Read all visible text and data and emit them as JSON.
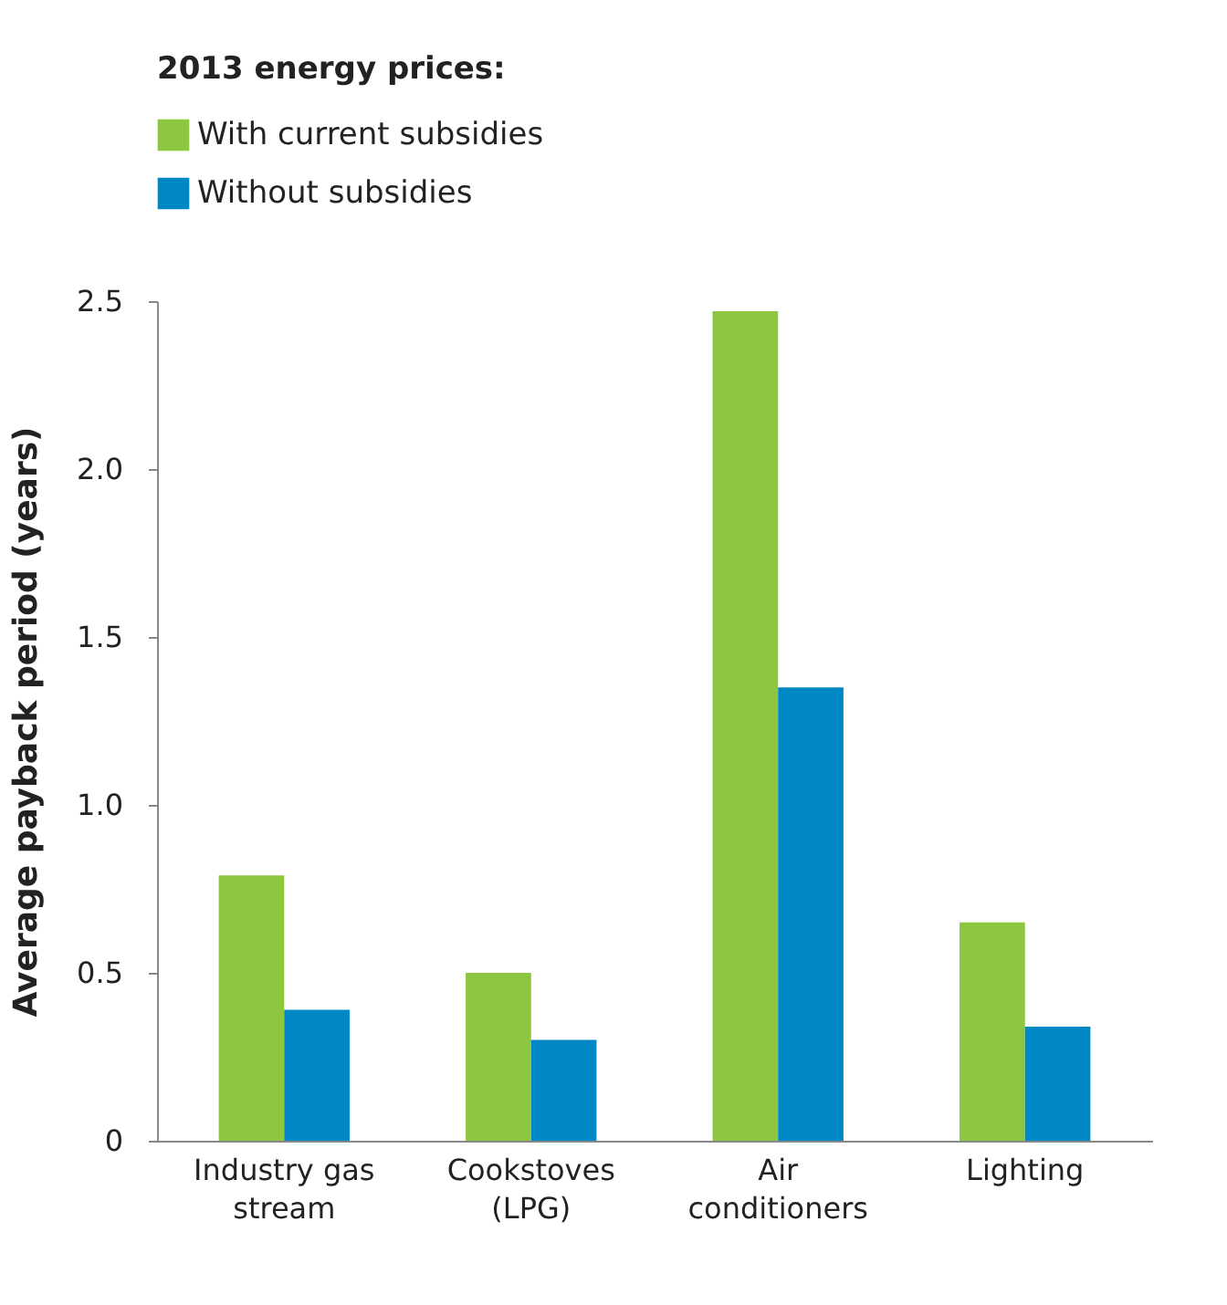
{
  "chart_data": {
    "type": "bar",
    "ylabel": "Average payback period (years)",
    "legend_title": "2013 energy prices:",
    "categories": [
      "Industry gas stream",
      "Cookstoves (LPG)",
      "Air conditioners",
      "Lighting"
    ],
    "series": [
      {
        "name": "With current subsidies",
        "color": "#8dc63f",
        "values": [
          0.79,
          0.5,
          2.47,
          0.65
        ]
      },
      {
        "name": "Without subsidies",
        "color": "#0088c6",
        "values": [
          0.39,
          0.3,
          1.35,
          0.34
        ]
      }
    ],
    "ylim": [
      0,
      2.5
    ],
    "yticks": [
      0,
      0.5,
      {
        "value": 1,
        "label": "1.0"
      },
      1.5,
      {
        "value": 2,
        "label": "2.0"
      },
      2.5
    ],
    "grid": false,
    "legend": "top left"
  }
}
